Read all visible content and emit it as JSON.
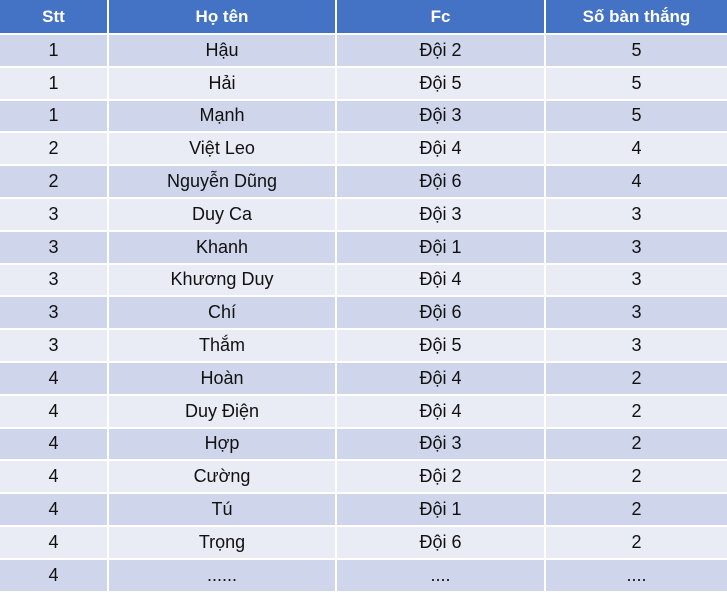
{
  "table": {
    "headers": [
      "Stt",
      "Họ tên",
      "Fc",
      "Số bàn thắng"
    ],
    "rows": [
      [
        "1",
        "Hậu",
        "Đội 2",
        "5"
      ],
      [
        "1",
        "Hải",
        "Đội 5",
        "5"
      ],
      [
        "1",
        "Mạnh",
        "Đội 3",
        "5"
      ],
      [
        "2",
        "Việt Leo",
        "Đội 4",
        "4"
      ],
      [
        "2",
        "Nguyễn Dũng",
        "Đội 6",
        "4"
      ],
      [
        "3",
        "Duy Ca",
        "Đội 3",
        "3"
      ],
      [
        "3",
        "Khanh",
        "Đội 1",
        "3"
      ],
      [
        "3",
        "Khương Duy",
        "Đội 4",
        "3"
      ],
      [
        "3",
        "Chí",
        "Đội 6",
        "3"
      ],
      [
        "3",
        "Thắm",
        "Đội 5",
        "3"
      ],
      [
        "4",
        "Hoàn",
        "Đội 4",
        "2"
      ],
      [
        "4",
        "Duy Điện",
        "Đội 4",
        "2"
      ],
      [
        "4",
        "Hợp",
        "Đội 3",
        "2"
      ],
      [
        "4",
        "Cường",
        "Đội 2",
        "2"
      ],
      [
        "4",
        "Tú",
        "Đội 1",
        "2"
      ],
      [
        "4",
        "Trọng",
        "Đội 6",
        "2"
      ],
      [
        "4",
        "......",
        "....",
        "...."
      ]
    ]
  },
  "colors": {
    "header_bg": "#4472c4",
    "header_text": "#ffffff",
    "row_band_dark": "#cfd5ea",
    "row_band_light": "#e9ebf5"
  }
}
